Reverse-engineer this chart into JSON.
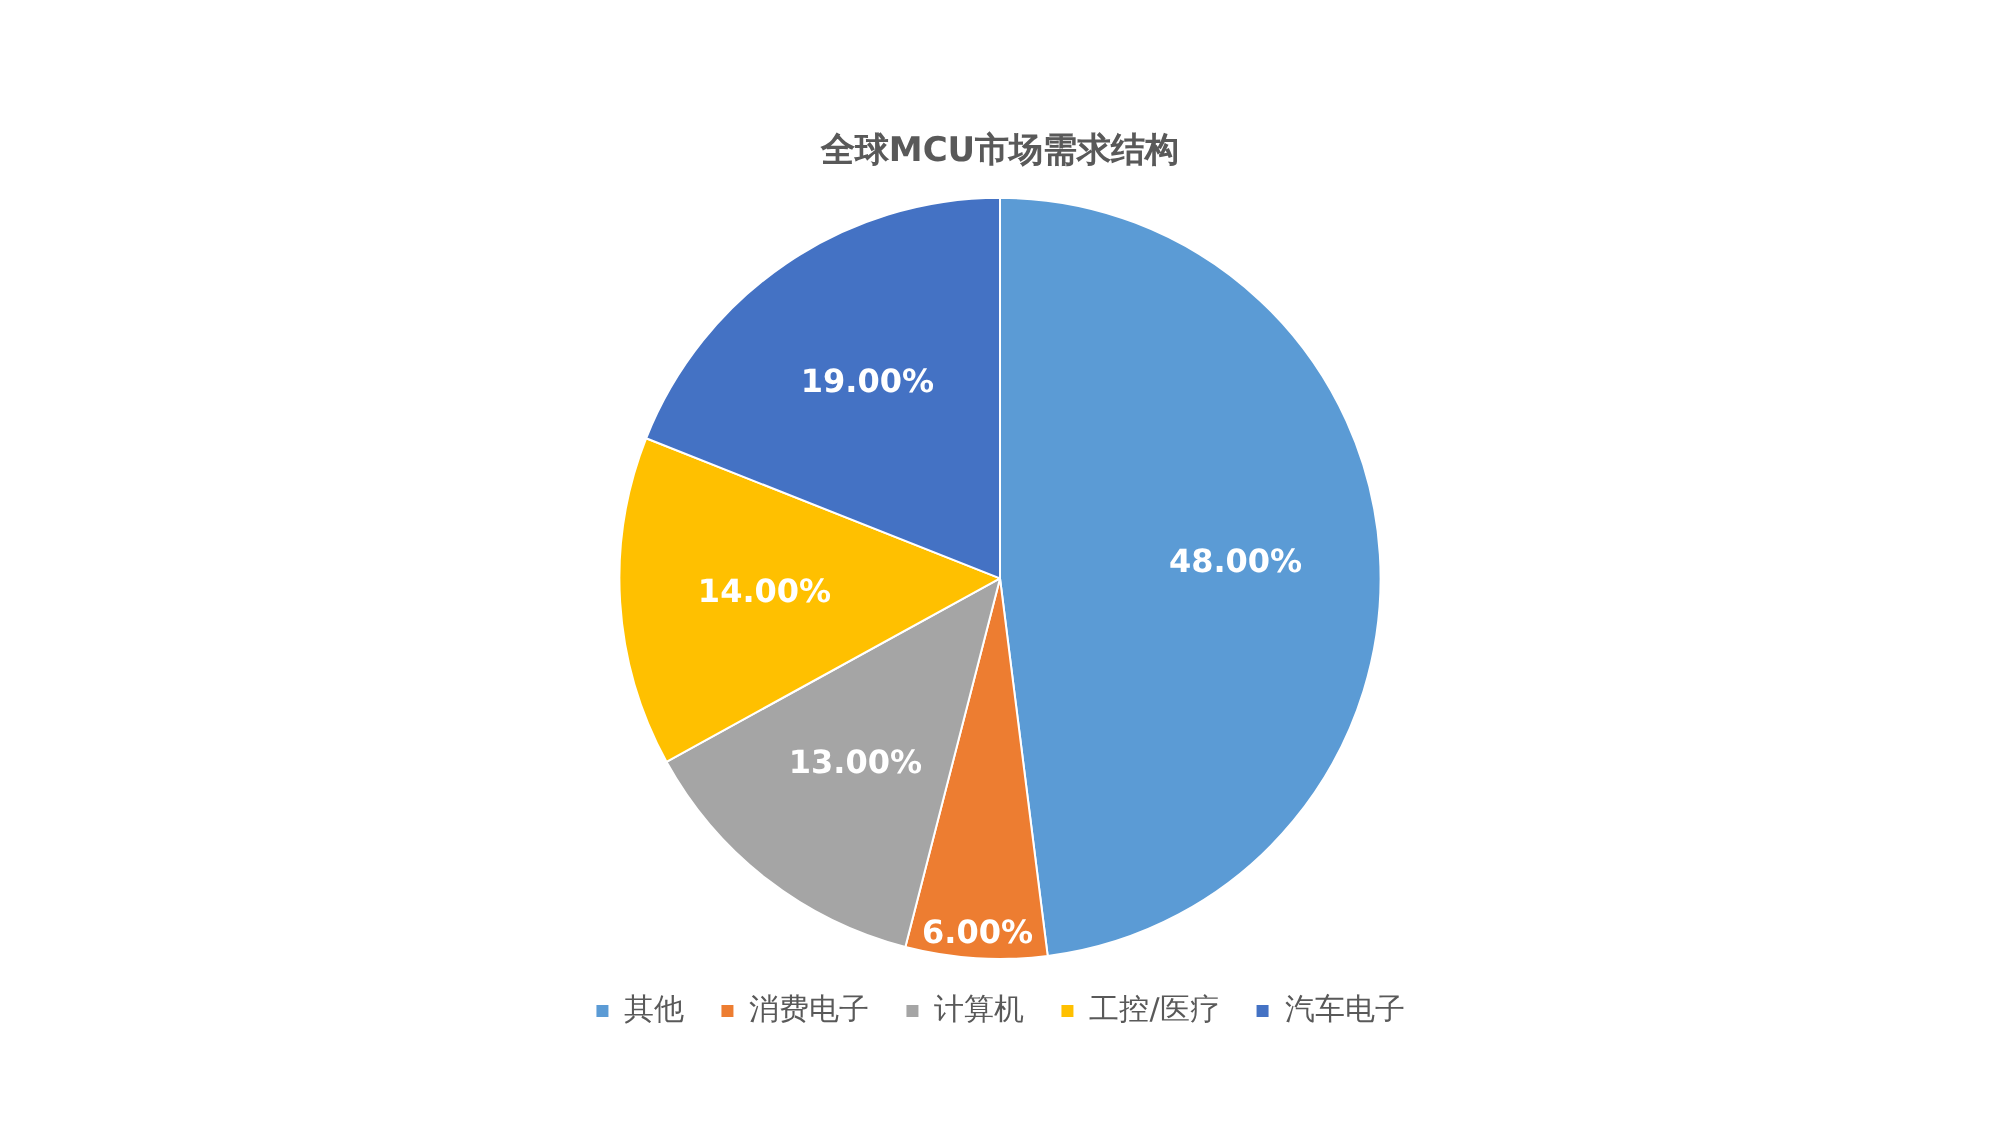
{
  "chart_data": {
    "type": "pie",
    "title": "全球MCU市场需求结构",
    "categories": [
      "其他",
      "消费电子",
      "计算机",
      "工控/医疗",
      "汽车电子"
    ],
    "values": [
      48,
      6,
      13,
      14,
      19
    ],
    "colors": [
      "#5b9bd5",
      "#ed7d31",
      "#a5a5a5",
      "#ffc000",
      "#4472c4"
    ],
    "value_labels": [
      "48.00%",
      "6.00%",
      "13.00%",
      "14.00%",
      "19.00%"
    ],
    "legend": "bottom"
  }
}
